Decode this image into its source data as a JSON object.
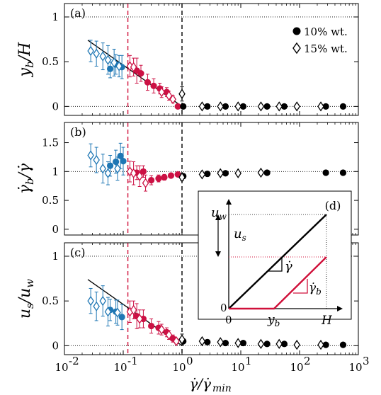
{
  "colors": {
    "shear_banding": "#1f77b4",
    "intermediate": "#cc1144",
    "homogeneous": "#000000",
    "fit_line": "#000000",
    "threshold_red": "#d0103a",
    "threshold_black": "#000000"
  },
  "legend": {
    "entries": [
      {
        "marker": "filled-circle",
        "label": "10% wt."
      },
      {
        "marker": "open-diamond",
        "label": "15% wt."
      }
    ],
    "placement": "top-right of panel (a)"
  },
  "x_axis": {
    "scale": "log",
    "range": [
      0.01,
      1000
    ],
    "tick_labels": [
      "10",
      "10",
      "10",
      "10",
      "10",
      "10"
    ],
    "tick_exponents": [
      "-2",
      "-1",
      "0",
      "1",
      "2",
      "3"
    ],
    "label_main": "γ̇/γ̇",
    "label_sub": "min"
  },
  "chart_data": [
    {
      "panel": "a",
      "type": "scatter",
      "ylabel_main": "y",
      "ylabel_sub": "b",
      "ylabel_tail": "/H",
      "ylim": [
        -0.1,
        1.15
      ],
      "yticks": [
        "0",
        "0.5",
        "1"
      ],
      "reference_lines": [
        0,
        1
      ],
      "vertical_lines": [
        0.12,
        1.0
      ],
      "fit_line": {
        "x": [
          0.025,
          1.0
        ],
        "y": [
          0.74,
          0
        ]
      },
      "series": [
        {
          "name": "10% wt.",
          "marker": "filled-circle",
          "points": [
            {
              "x": 0.06,
              "y": 0.42,
              "err": 0.1,
              "group": "shear_banding"
            },
            {
              "x": 0.075,
              "y": 0.47,
              "err": 0.11,
              "group": "shear_banding"
            },
            {
              "x": 0.095,
              "y": 0.44,
              "err": 0.13,
              "group": "shear_banding"
            },
            {
              "x": 0.17,
              "y": 0.4,
              "err": 0.14,
              "group": "intermediate"
            },
            {
              "x": 0.2,
              "y": 0.37,
              "err": 0.09,
              "group": "intermediate"
            },
            {
              "x": 0.26,
              "y": 0.27,
              "err": 0.09,
              "group": "intermediate"
            },
            {
              "x": 0.33,
              "y": 0.23,
              "err": 0.08,
              "group": "intermediate"
            },
            {
              "x": 0.42,
              "y": 0.2,
              "err": 0.06,
              "group": "intermediate"
            },
            {
              "x": 0.55,
              "y": 0.16,
              "err": 0.05,
              "group": "intermediate"
            },
            {
              "x": 0.85,
              "y": 0.0,
              "err": 0,
              "group": "intermediate"
            },
            {
              "x": 1.05,
              "y": 0.0,
              "err": 0,
              "group": "homogeneous"
            },
            {
              "x": 2.7,
              "y": 0.0,
              "err": 0,
              "group": "homogeneous"
            },
            {
              "x": 5.5,
              "y": 0.0,
              "err": 0,
              "group": "homogeneous"
            },
            {
              "x": 11,
              "y": 0.0,
              "err": 0,
              "group": "homogeneous"
            },
            {
              "x": 28,
              "y": 0.0,
              "err": 0,
              "group": "homogeneous"
            },
            {
              "x": 55,
              "y": 0.0,
              "err": 0,
              "group": "homogeneous"
            },
            {
              "x": 280,
              "y": 0.0,
              "err": 0,
              "group": "homogeneous"
            },
            {
              "x": 550,
              "y": 0.0,
              "err": 0,
              "group": "homogeneous"
            }
          ]
        },
        {
          "name": "15% wt.",
          "marker": "open-diamond",
          "points": [
            {
              "x": 0.028,
              "y": 0.62,
              "err": 0.12,
              "group": "shear_banding"
            },
            {
              "x": 0.035,
              "y": 0.59,
              "err": 0.14,
              "group": "shear_banding"
            },
            {
              "x": 0.045,
              "y": 0.56,
              "err": 0.15,
              "group": "shear_banding"
            },
            {
              "x": 0.055,
              "y": 0.52,
              "err": 0.16,
              "group": "shear_banding"
            },
            {
              "x": 0.07,
              "y": 0.49,
              "err": 0.15,
              "group": "shear_banding"
            },
            {
              "x": 0.085,
              "y": 0.45,
              "err": 0.12,
              "group": "shear_banding"
            },
            {
              "x": 0.13,
              "y": 0.45,
              "err": 0.12,
              "group": "intermediate"
            },
            {
              "x": 0.15,
              "y": 0.44,
              "err": 0.1,
              "group": "intermediate"
            },
            {
              "x": 0.45,
              "y": 0.16,
              "err": 0.06,
              "group": "intermediate"
            },
            {
              "x": 0.6,
              "y": 0.12,
              "err": 0.05,
              "group": "intermediate"
            },
            {
              "x": 0.7,
              "y": 0.08,
              "err": 0.04,
              "group": "intermediate"
            },
            {
              "x": 1.0,
              "y": 0.14,
              "err": 0.08,
              "group": "homogeneous"
            },
            {
              "x": 2.2,
              "y": 0.0,
              "err": 0,
              "group": "homogeneous"
            },
            {
              "x": 4.5,
              "y": 0.0,
              "err": 0,
              "group": "homogeneous"
            },
            {
              "x": 9,
              "y": 0.0,
              "err": 0,
              "group": "homogeneous"
            },
            {
              "x": 22,
              "y": 0.0,
              "err": 0,
              "group": "homogeneous"
            },
            {
              "x": 45,
              "y": 0.0,
              "err": 0,
              "group": "homogeneous"
            },
            {
              "x": 90,
              "y": 0.0,
              "err": 0,
              "group": "homogeneous"
            },
            {
              "x": 230,
              "y": 0.0,
              "err": 0,
              "group": "homogeneous"
            }
          ]
        }
      ]
    },
    {
      "panel": "b",
      "type": "scatter",
      "ylabel_main": "γ̇",
      "ylabel_sub": "b",
      "ylabel_tail": "/γ̇",
      "ylim": [
        -0.1,
        1.85
      ],
      "yticks": [
        "0",
        "0.5",
        "1",
        "1.5"
      ],
      "reference_lines": [
        1
      ],
      "vertical_lines": [
        0.12,
        1.0
      ],
      "series": [
        {
          "name": "10% wt.",
          "marker": "filled-circle",
          "points": [
            {
              "x": 0.06,
              "y": 1.1,
              "err": 0.18,
              "group": "shear_banding"
            },
            {
              "x": 0.075,
              "y": 1.17,
              "err": 0.2,
              "group": "shear_banding"
            },
            {
              "x": 0.09,
              "y": 1.27,
              "err": 0.22,
              "group": "shear_banding"
            },
            {
              "x": 0.1,
              "y": 1.18,
              "err": 0.24,
              "group": "shear_banding"
            },
            {
              "x": 0.17,
              "y": 0.98,
              "err": 0.12,
              "group": "intermediate"
            },
            {
              "x": 0.22,
              "y": 1.0,
              "err": 0.1,
              "group": "intermediate"
            },
            {
              "x": 0.3,
              "y": 0.85,
              "err": 0.08,
              "group": "intermediate"
            },
            {
              "x": 0.4,
              "y": 0.88,
              "err": 0.06,
              "group": "intermediate"
            },
            {
              "x": 0.5,
              "y": 0.9,
              "err": 0.05,
              "group": "intermediate"
            },
            {
              "x": 0.65,
              "y": 0.93,
              "err": 0.04,
              "group": "intermediate"
            },
            {
              "x": 0.85,
              "y": 0.95,
              "err": 0.03,
              "group": "intermediate"
            },
            {
              "x": 1.05,
              "y": 0.92,
              "err": 0,
              "group": "homogeneous"
            },
            {
              "x": 2.7,
              "y": 0.96,
              "err": 0,
              "group": "homogeneous"
            },
            {
              "x": 5.5,
              "y": 0.97,
              "err": 0,
              "group": "homogeneous"
            },
            {
              "x": 28,
              "y": 0.98,
              "err": 0,
              "group": "homogeneous"
            },
            {
              "x": 280,
              "y": 0.98,
              "err": 0,
              "group": "homogeneous"
            },
            {
              "x": 550,
              "y": 0.98,
              "err": 0,
              "group": "homogeneous"
            }
          ]
        },
        {
          "name": "15% wt.",
          "marker": "open-diamond",
          "points": [
            {
              "x": 0.028,
              "y": 1.28,
              "err": 0.2,
              "group": "shear_banding"
            },
            {
              "x": 0.035,
              "y": 1.2,
              "err": 0.22,
              "group": "shear_banding"
            },
            {
              "x": 0.045,
              "y": 1.05,
              "err": 0.25,
              "group": "shear_banding"
            },
            {
              "x": 0.055,
              "y": 0.97,
              "err": 0.2,
              "group": "shear_banding"
            },
            {
              "x": 0.08,
              "y": 1.05,
              "err": 0.2,
              "group": "shear_banding"
            },
            {
              "x": 0.13,
              "y": 1.0,
              "err": 0.18,
              "group": "intermediate"
            },
            {
              "x": 0.15,
              "y": 0.97,
              "err": 0.2,
              "group": "intermediate"
            },
            {
              "x": 0.19,
              "y": 0.92,
              "err": 0.18,
              "group": "intermediate"
            },
            {
              "x": 0.24,
              "y": 0.8,
              "err": 0.14,
              "group": "intermediate"
            },
            {
              "x": 1.0,
              "y": 0.9,
              "err": 0.06,
              "group": "homogeneous"
            },
            {
              "x": 2.2,
              "y": 0.95,
              "err": 0,
              "group": "homogeneous"
            },
            {
              "x": 4.5,
              "y": 0.97,
              "err": 0,
              "group": "homogeneous"
            },
            {
              "x": 9,
              "y": 0.97,
              "err": 0,
              "group": "homogeneous"
            },
            {
              "x": 22,
              "y": 0.98,
              "err": 0,
              "group": "homogeneous"
            }
          ]
        }
      ]
    },
    {
      "panel": "c",
      "type": "scatter",
      "ylabel_main": "u",
      "ylabel_sub": "s",
      "ylabel_tail": "/u",
      "ylabel_tail_sub": "w",
      "ylim": [
        -0.1,
        1.15
      ],
      "yticks": [
        "0",
        "0.5",
        "1"
      ],
      "reference_lines": [
        0,
        1
      ],
      "vertical_lines": [
        0.12,
        1.0
      ],
      "fit_line": {
        "x": [
          0.025,
          1.0
        ],
        "y": [
          0.74,
          0
        ]
      },
      "series": [
        {
          "name": "10% wt.",
          "marker": "filled-circle",
          "points": [
            {
              "x": 0.06,
              "y": 0.4,
              "err": 0.12,
              "group": "shear_banding"
            },
            {
              "x": 0.075,
              "y": 0.38,
              "err": 0.13,
              "group": "shear_banding"
            },
            {
              "x": 0.095,
              "y": 0.32,
              "err": 0.14,
              "group": "shear_banding"
            },
            {
              "x": 0.17,
              "y": 0.33,
              "err": 0.14,
              "group": "intermediate"
            },
            {
              "x": 0.22,
              "y": 0.3,
              "err": 0.1,
              "group": "intermediate"
            },
            {
              "x": 0.3,
              "y": 0.22,
              "err": 0.08,
              "group": "intermediate"
            },
            {
              "x": 0.4,
              "y": 0.2,
              "err": 0.07,
              "group": "intermediate"
            },
            {
              "x": 0.55,
              "y": 0.15,
              "err": 0.05,
              "group": "intermediate"
            },
            {
              "x": 0.7,
              "y": 0.08,
              "err": 0.04,
              "group": "intermediate"
            },
            {
              "x": 1.05,
              "y": 0.05,
              "err": 0,
              "group": "homogeneous"
            },
            {
              "x": 2.7,
              "y": 0.04,
              "err": 0,
              "group": "homogeneous"
            },
            {
              "x": 5.5,
              "y": 0.03,
              "err": 0,
              "group": "homogeneous"
            },
            {
              "x": 11,
              "y": 0.03,
              "err": 0,
              "group": "homogeneous"
            },
            {
              "x": 28,
              "y": 0.02,
              "err": 0,
              "group": "homogeneous"
            },
            {
              "x": 55,
              "y": 0.02,
              "err": 0,
              "group": "homogeneous"
            },
            {
              "x": 280,
              "y": 0.01,
              "err": 0,
              "group": "homogeneous"
            },
            {
              "x": 550,
              "y": 0.01,
              "err": 0,
              "group": "homogeneous"
            }
          ]
        },
        {
          "name": "15% wt.",
          "marker": "open-diamond",
          "points": [
            {
              "x": 0.028,
              "y": 0.5,
              "err": 0.14,
              "group": "shear_banding"
            },
            {
              "x": 0.035,
              "y": 0.44,
              "err": 0.16,
              "group": "shear_banding"
            },
            {
              "x": 0.045,
              "y": 0.5,
              "err": 0.17,
              "group": "shear_banding"
            },
            {
              "x": 0.055,
              "y": 0.38,
              "err": 0.16,
              "group": "shear_banding"
            },
            {
              "x": 0.08,
              "y": 0.37,
              "err": 0.14,
              "group": "shear_banding"
            },
            {
              "x": 0.13,
              "y": 0.38,
              "err": 0.12,
              "group": "intermediate"
            },
            {
              "x": 0.15,
              "y": 0.4,
              "err": 0.1,
              "group": "intermediate"
            },
            {
              "x": 0.19,
              "y": 0.3,
              "err": 0.1,
              "group": "intermediate"
            },
            {
              "x": 0.45,
              "y": 0.18,
              "err": 0.06,
              "group": "intermediate"
            },
            {
              "x": 0.6,
              "y": 0.12,
              "err": 0.05,
              "group": "intermediate"
            },
            {
              "x": 0.8,
              "y": 0.05,
              "err": 0.03,
              "group": "intermediate"
            },
            {
              "x": 1.0,
              "y": 0.07,
              "err": 0.06,
              "group": "homogeneous"
            },
            {
              "x": 2.2,
              "y": 0.05,
              "err": 0,
              "group": "homogeneous"
            },
            {
              "x": 4.5,
              "y": 0.04,
              "err": 0,
              "group": "homogeneous"
            },
            {
              "x": 9,
              "y": 0.03,
              "err": 0,
              "group": "homogeneous"
            },
            {
              "x": 22,
              "y": 0.02,
              "err": 0,
              "group": "homogeneous"
            },
            {
              "x": 45,
              "y": 0.02,
              "err": 0,
              "group": "homogeneous"
            },
            {
              "x": 90,
              "y": 0.01,
              "err": 0,
              "group": "homogeneous"
            },
            {
              "x": 230,
              "y": 0.01,
              "err": 0,
              "group": "homogeneous"
            }
          ]
        }
      ]
    }
  ],
  "inset": {
    "label": "d",
    "u_w": "u",
    "u_w_sub": "w",
    "u_s": "u",
    "u_s_sub": "s",
    "gamma": "γ̇",
    "gamma_b": "γ̇",
    "gamma_b_sub": "b",
    "origin_label": "0",
    "origin_y_label": "0",
    "yb_label": "y",
    "yb_sub": "b",
    "H_label": "H"
  }
}
